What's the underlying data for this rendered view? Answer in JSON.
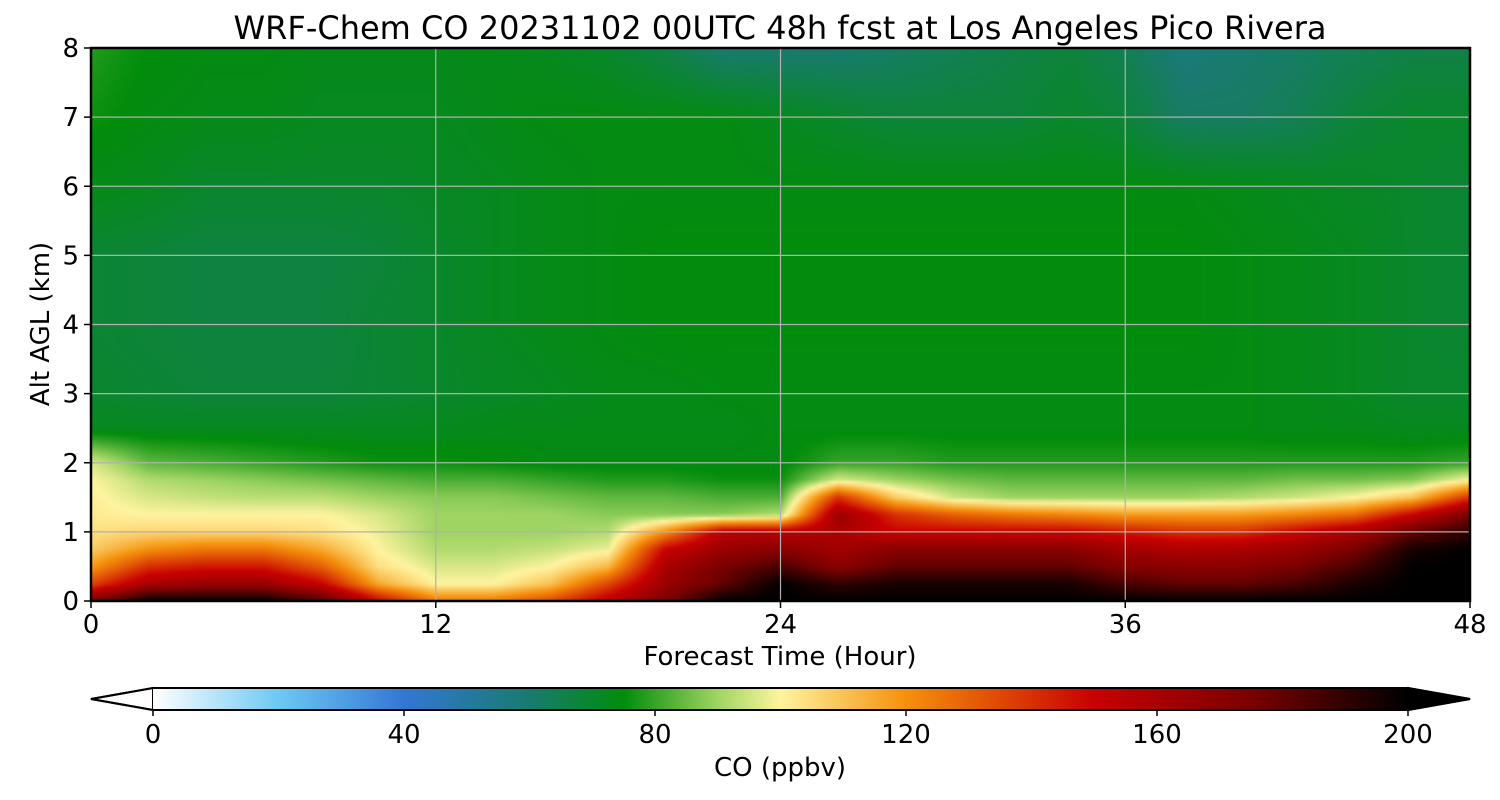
{
  "chart_data": {
    "type": "heatmap",
    "title": "WRF-Chem CO  20231102 00UTC 48h fcst at Los Angeles Pico Rivera",
    "xlabel": "Forecast Time (Hour)",
    "ylabel": "Alt AGL (km)",
    "xlim": [
      0,
      48
    ],
    "ylim": [
      0,
      8
    ],
    "xticks": [
      "0",
      "12",
      "24",
      "36",
      "48"
    ],
    "yticks": [
      "0",
      "1",
      "2",
      "3",
      "4",
      "5",
      "6",
      "7",
      "8"
    ],
    "grid": true,
    "colorbar": {
      "label": "CO  (ppbv)",
      "range": [
        0,
        200
      ],
      "ticks": [
        "0",
        "40",
        "80",
        "120",
        "160",
        "200"
      ],
      "extend": "both",
      "orientation": "horizontal",
      "stops": [
        {
          "v": 0,
          "c": "#ffffff"
        },
        {
          "v": 20,
          "c": "#6ec8f4"
        },
        {
          "v": 40,
          "c": "#3377d3"
        },
        {
          "v": 60,
          "c": "#1a7a70"
        },
        {
          "v": 75,
          "c": "#028c0b"
        },
        {
          "v": 90,
          "c": "#9fd463"
        },
        {
          "v": 100,
          "c": "#fff4a0"
        },
        {
          "v": 120,
          "c": "#f5900c"
        },
        {
          "v": 150,
          "c": "#c80000"
        },
        {
          "v": 175,
          "c": "#7a0000"
        },
        {
          "v": 200,
          "c": "#000000"
        }
      ]
    },
    "x": [
      0,
      2,
      4,
      6,
      8,
      10,
      12,
      14,
      16,
      18,
      20,
      22,
      24,
      26,
      28,
      30,
      32,
      34,
      36,
      38,
      40,
      42,
      44,
      46,
      48
    ],
    "y": [
      0,
      0.25,
      0.5,
      0.75,
      1,
      1.25,
      1.5,
      1.75,
      2,
      2.5,
      3,
      4,
      5,
      6,
      7,
      8
    ],
    "z": [
      [
        175,
        200,
        200,
        200,
        185,
        150,
        125,
        125,
        135,
        155,
        175,
        200,
        200,
        200,
        200,
        200,
        200,
        200,
        200,
        200,
        200,
        200,
        200,
        200,
        200
      ],
      [
        135,
        160,
        165,
        165,
        150,
        115,
        100,
        100,
        110,
        135,
        165,
        180,
        200,
        190,
        195,
        195,
        195,
        195,
        185,
        180,
        180,
        185,
        195,
        200,
        200
      ],
      [
        118,
        140,
        145,
        145,
        130,
        104,
        96,
        96,
        100,
        112,
        160,
        175,
        185,
        170,
        180,
        180,
        180,
        180,
        172,
        170,
        170,
        175,
        185,
        200,
        200
      ],
      [
        108,
        120,
        125,
        125,
        115,
        100,
        92,
        92,
        94,
        98,
        150,
        165,
        170,
        162,
        170,
        170,
        170,
        170,
        162,
        158,
        160,
        165,
        175,
        195,
        200
      ],
      [
        104,
        106,
        106,
        106,
        104,
        98,
        90,
        90,
        90,
        92,
        120,
        155,
        155,
        160,
        150,
        150,
        150,
        150,
        145,
        140,
        140,
        150,
        160,
        180,
        190
      ],
      [
        102,
        100,
        100,
        100,
        100,
        96,
        90,
        90,
        90,
        88,
        88,
        88,
        92,
        165,
        140,
        130,
        125,
        122,
        118,
        118,
        118,
        122,
        128,
        150,
        175
      ],
      [
        101,
        96,
        94,
        93,
        93,
        90,
        88,
        88,
        86,
        84,
        84,
        82,
        82,
        140,
        108,
        95,
        90,
        90,
        90,
        90,
        92,
        95,
        100,
        110,
        140
      ],
      [
        100,
        92,
        90,
        88,
        86,
        84,
        82,
        82,
        80,
        78,
        78,
        76,
        76,
        96,
        90,
        86,
        84,
        84,
        84,
        84,
        84,
        86,
        86,
        88,
        100
      ],
      [
        96,
        84,
        82,
        80,
        78,
        76,
        76,
        75,
        74,
        74,
        74,
        74,
        74,
        80,
        80,
        78,
        78,
        78,
        78,
        78,
        78,
        78,
        78,
        78,
        80
      ],
      [
        72,
        72,
        72,
        72,
        72,
        72,
        72,
        73,
        73,
        73,
        73,
        73,
        74,
        74,
        74,
        74,
        74,
        74,
        74,
        74,
        74,
        73,
        73,
        72,
        72
      ],
      [
        70,
        69,
        68,
        68,
        68,
        69,
        70,
        71,
        72,
        73,
        73,
        74,
        74,
        74,
        74,
        74,
        74,
        74,
        74,
        74,
        74,
        73,
        72,
        70,
        70
      ],
      [
        69,
        68,
        67,
        67,
        67,
        69,
        70,
        72,
        73,
        74,
        75,
        75,
        75,
        75,
        75,
        75,
        75,
        75,
        75,
        75,
        74,
        73,
        72,
        70,
        69
      ],
      [
        69,
        68,
        67,
        67,
        67,
        68,
        70,
        72,
        73,
        74,
        75,
        75,
        75,
        75,
        75,
        75,
        75,
        75,
        75,
        75,
        74,
        73,
        72,
        70,
        69
      ],
      [
        73,
        72,
        70,
        70,
        70,
        70,
        71,
        72,
        73,
        74,
        74,
        74,
        74,
        74,
        74,
        74,
        74,
        74,
        74,
        74,
        73,
        72,
        71,
        70,
        69
      ],
      [
        76,
        74,
        73,
        73,
        72,
        72,
        72,
        73,
        74,
        74,
        74,
        74,
        72,
        70,
        68,
        68,
        68,
        70,
        68,
        62,
        62,
        64,
        68,
        70,
        70
      ],
      [
        78,
        75,
        74,
        74,
        73,
        73,
        73,
        73,
        72,
        70,
        66,
        60,
        60,
        60,
        62,
        64,
        66,
        68,
        64,
        58,
        60,
        62,
        64,
        66,
        66
      ]
    ]
  }
}
